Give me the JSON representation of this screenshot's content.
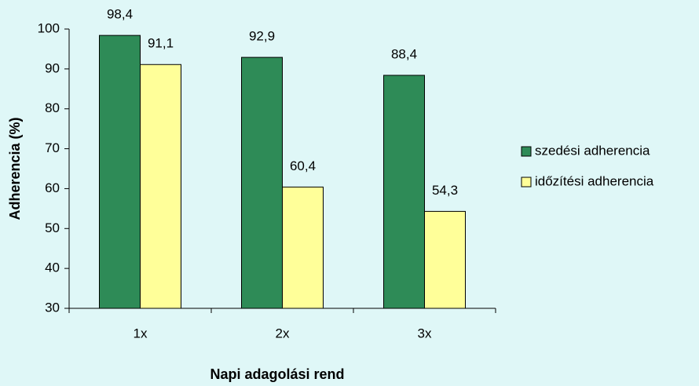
{
  "chart_data": {
    "type": "bar",
    "x_label": "Napi adagolási rend",
    "y_label": "Adherencia (%)",
    "categories": [
      "1x",
      "2x",
      "3x"
    ],
    "series": [
      {
        "name": "szedési adherencia",
        "color": "#2e8b57",
        "values": [
          98.4,
          92.9,
          88.4
        ],
        "value_labels": [
          "98,4",
          "92,9",
          "88,4"
        ]
      },
      {
        "name": "időzítési adherencia",
        "color": "#ffff99",
        "values": [
          91.1,
          60.4,
          54.3
        ],
        "value_labels": [
          "91,1",
          "60,4",
          "54,3"
        ]
      }
    ],
    "ylim": [
      30,
      100
    ],
    "yticks": [
      30,
      40,
      50,
      60,
      70,
      80,
      90,
      100
    ],
    "grid": false,
    "legend": "right"
  }
}
